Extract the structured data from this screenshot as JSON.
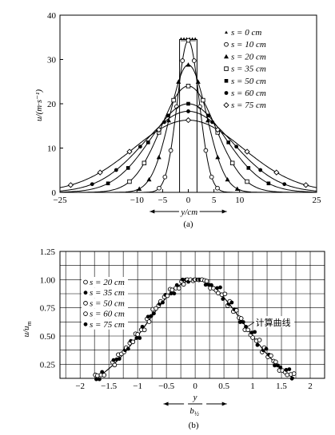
{
  "chart_data": [
    {
      "type": "line",
      "panel_label": "(a)",
      "xlabel": "y/cm",
      "ylabel": "u/(m·s⁻¹)",
      "xlim": [
        -25,
        25
      ],
      "ylim": [
        0,
        40
      ],
      "xticks": [
        "−25",
        "−10",
        "−5",
        "0",
        "5",
        "10",
        "25"
      ],
      "xtick_values": [
        -25,
        -10,
        -5,
        0,
        5,
        10,
        25
      ],
      "yticks": [
        "0",
        "10",
        "20",
        "30",
        "40"
      ],
      "ytick_values": [
        0,
        10,
        20,
        30,
        40
      ],
      "grid": false,
      "legend_position": "top-right",
      "series": [
        {
          "name": "s = 0 cm",
          "marker": "triangle-small",
          "um": 34.5,
          "b": 0,
          "core": true
        },
        {
          "name": "s = 10 cm",
          "marker": "circle-open",
          "um": 34.3,
          "b": 2.5
        },
        {
          "name": "s = 20 cm",
          "marker": "triangle-filled",
          "um": 28.8,
          "b": 4.2
        },
        {
          "name": "s = 35 cm",
          "marker": "square-open",
          "um": 24.0,
          "b": 6.3
        },
        {
          "name": "s = 50 cm",
          "marker": "square-filled",
          "um": 20.0,
          "b": 8.6
        },
        {
          "name": "s = 60 cm",
          "marker": "circle-filled",
          "um": 18.3,
          "b": 10.3
        },
        {
          "name": "s = 75 cm",
          "marker": "diamond-open",
          "um": 16.3,
          "b": 12.6
        }
      ],
      "core_width": [
        -1.7,
        1.7
      ],
      "core_value": 34.5
    },
    {
      "type": "line",
      "panel_label": "(b)",
      "xlabel_num": "y",
      "xlabel_den": "b",
      "xlabel_den_sub": "½",
      "ylabel": "u/u",
      "ylabel_sub": "m",
      "xlim": [
        -2,
        2
      ],
      "ylim": [
        0.125,
        1.25
      ],
      "xticks": [
        "−2",
        "−1.5",
        "−1",
        "−0.5",
        "0",
        "0.5",
        "1",
        "1.5",
        "2"
      ],
      "xtick_values": [
        -2,
        -1.5,
        -1,
        -0.5,
        0,
        0.5,
        1,
        1.5,
        2
      ],
      "yticks": [
        "0.25",
        "0.50",
        "0.75",
        "1.00",
        "1.25"
      ],
      "ytick_values": [
        0.25,
        0.5,
        0.75,
        1.0,
        1.25
      ],
      "grid": true,
      "legend_position": "top-left",
      "annotation": "计算曲线",
      "series": [
        {
          "name": "s = 20 cm",
          "marker": "circle-open"
        },
        {
          "name": "s = 35 cm",
          "marker": "circle-filled"
        },
        {
          "name": "s = 50 cm",
          "marker": "circle-open"
        },
        {
          "name": "s = 60 cm",
          "marker": "circle-open"
        },
        {
          "name": "s = 75 cm",
          "marker": "circle-filled"
        }
      ],
      "points_x": [
        -1.7,
        -1.6,
        -1.4,
        -1.3,
        -1.2,
        -1.1,
        -1.0,
        -0.9,
        -0.8,
        -0.7,
        -0.6,
        -0.5,
        -0.4,
        -0.3,
        -0.2,
        -0.1,
        0.0,
        0.1,
        0.2,
        0.3,
        0.4,
        0.5,
        0.6,
        0.7,
        0.8,
        0.9,
        1.0,
        1.1,
        1.2,
        1.3,
        1.4,
        1.5,
        1.6,
        1.7
      ]
    }
  ]
}
